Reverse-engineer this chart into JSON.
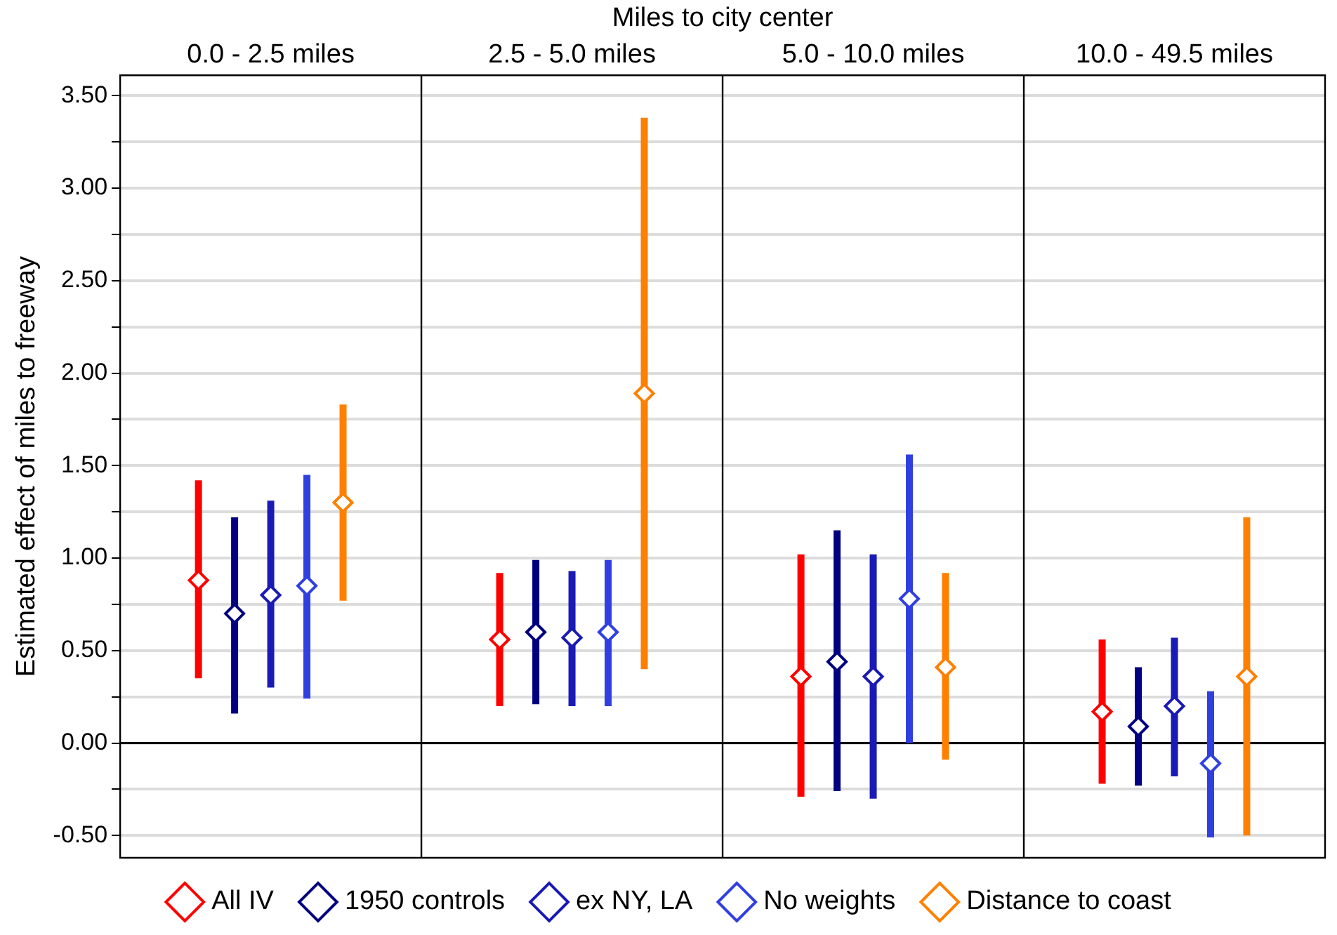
{
  "chart_data": {
    "type": "scatter",
    "xlabel": "Miles to city center",
    "ylabel": "Estimated effect of miles to freeway",
    "categories": [
      "0.0 - 2.5 miles",
      "2.5 - 5.0 miles",
      "5.0 - 10.0 miles",
      "10.0 - 49.5 miles"
    ],
    "series": [
      {
        "name": "All IV",
        "color": "#ff0000",
        "values": [
          0.88,
          0.56,
          0.36,
          0.17
        ],
        "errors": [
          [
            0.35,
            1.42
          ],
          [
            0.2,
            0.92
          ],
          [
            -0.29,
            1.02
          ],
          [
            -0.22,
            0.56
          ]
        ]
      },
      {
        "name": "1950 controls",
        "color": "#000080",
        "values": [
          0.7,
          0.6,
          0.44,
          0.09
        ],
        "errors": [
          [
            0.16,
            1.22
          ],
          [
            0.21,
            0.99
          ],
          [
            -0.26,
            1.15
          ],
          [
            -0.23,
            0.41
          ]
        ]
      },
      {
        "name": "ex NY, LA",
        "color": "#1a1ab4",
        "values": [
          0.8,
          0.57,
          0.36,
          0.2
        ],
        "errors": [
          [
            0.3,
            1.31
          ],
          [
            0.2,
            0.93
          ],
          [
            -0.3,
            1.02
          ],
          [
            -0.18,
            0.57
          ]
        ]
      },
      {
        "name": "No weights",
        "color": "#3040e0",
        "values": [
          0.85,
          0.6,
          0.78,
          -0.11
        ],
        "errors": [
          [
            0.24,
            1.45
          ],
          [
            0.2,
            0.99
          ],
          [
            0,
            1.56
          ],
          [
            -0.51,
            0.28
          ]
        ]
      },
      {
        "name": "Distance to coast",
        "color": "#ff8000",
        "values": [
          1.3,
          1.89,
          0.41,
          0.36
        ],
        "errors": [
          [
            0.77,
            1.83
          ],
          [
            0.4,
            3.38
          ],
          [
            -0.09,
            0.92
          ],
          [
            -0.5,
            1.22
          ]
        ]
      }
    ],
    "ylim": [
      -0.62,
      3.61
    ],
    "yticks": [
      {
        "value": -0.5,
        "label": "-0.50"
      },
      {
        "value": -0.25,
        "label": null
      },
      {
        "value": 0,
        "label": "0.00"
      },
      {
        "value": 0.25,
        "label": null
      },
      {
        "value": 0.5,
        "label": "0.50"
      },
      {
        "value": 0.75,
        "label": null
      },
      {
        "value": 1,
        "label": "1.00"
      },
      {
        "value": 1.25,
        "label": null
      },
      {
        "value": 1.5,
        "label": "1.50"
      },
      {
        "value": 1.75,
        "label": null
      },
      {
        "value": 2,
        "label": "2.00"
      },
      {
        "value": 2.25,
        "label": null
      },
      {
        "value": 2.5,
        "label": "2.50"
      },
      {
        "value": 2.75,
        "label": null
      },
      {
        "value": 3,
        "label": "3.00"
      },
      {
        "value": 3.25,
        "label": null
      },
      {
        "value": 3.5,
        "label": "3.50"
      }
    ],
    "ref_lines": [
      {
        "axis": "y",
        "value": 0,
        "color": "#000000"
      }
    ],
    "grid": "y",
    "legend": "bottom",
    "marker": "diamond"
  }
}
